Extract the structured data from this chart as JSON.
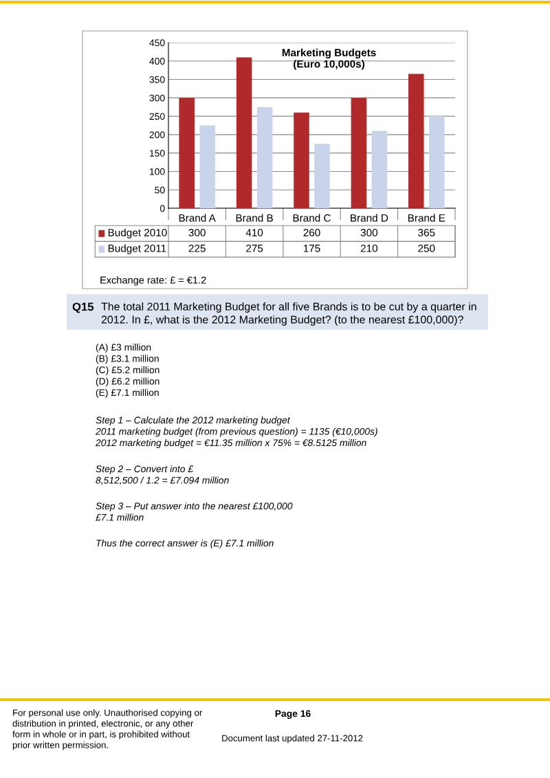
{
  "chart_data": {
    "type": "bar",
    "title": "Marketing Budgets\n(Euro 10,000s)",
    "categories": [
      "Brand A",
      "Brand B",
      "Brand C",
      "Brand D",
      "Brand E"
    ],
    "series": [
      {
        "name": "Budget 2010",
        "color": "#b02a2c",
        "values": [
          300,
          410,
          260,
          300,
          365
        ]
      },
      {
        "name": "Budget 2011",
        "color": "#c9d3ea",
        "values": [
          225,
          275,
          175,
          210,
          250
        ]
      }
    ],
    "ylim": [
      0,
      450
    ],
    "yticks": [
      0,
      50,
      100,
      150,
      200,
      250,
      300,
      350,
      400,
      450
    ],
    "grid": "y",
    "data_labels": true,
    "legend": "bottom left",
    "annotations": [
      "Exchange rate: £ = €1.2",
      "Q15",
      "The total 2011 Marketing Budget for all five Brands is to be cut by a quarter in\n2012. In £, what is the 2012 Marketing Budget? (to the nearest £100,000)?",
      "(A) £3 million\n(B) £3.1 million\n(C) £5.2 million\n(D) £6.2 million\n(E) £7.1 million",
      "Step 1 – Calculate the 2012 marketing budget\n2011 marketing budget (from previous question) = 1135 (€10,000s)\n2012 marketing budget = €11.35 million x 75% = €8.5125 million",
      "Step 2 – Convert into £\n8,512,500 / 1.2 = £7.094 million",
      "Step 3 – Put answer into the nearest £100,000\n£7.1 million",
      "Thus the correct answer is (E) £7.1 million",
      "For personal use only. Unauthorised copying or\ndistribution in printed, electronic, or any other\nform in whole or in part, is prohibited without\nprior written permission.",
      "Page 16",
      "Document last updated 27-11-2012"
    ]
  }
}
